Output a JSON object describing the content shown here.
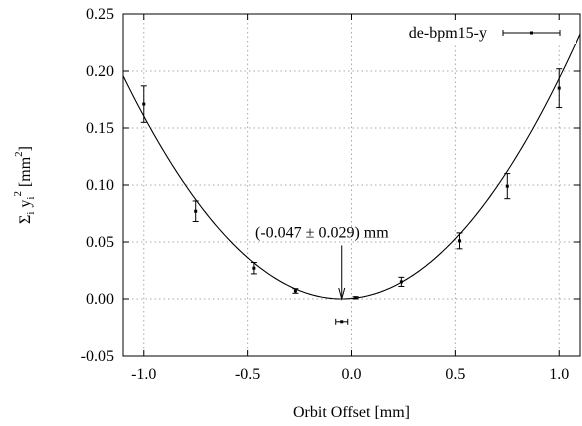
{
  "chart_data": {
    "type": "scatter",
    "xlabel": "Orbit Offset [mm]",
    "ylabel_parts": [
      "Σ",
      "i",
      " y",
      "i",
      "2",
      " [mm",
      "2",
      "]"
    ],
    "xlim": [
      -1.1,
      1.1
    ],
    "ylim": [
      -0.05,
      0.25
    ],
    "grid": true,
    "legend_position": "top-right",
    "x_ticks": [
      -1.0,
      -0.5,
      0.0,
      0.5,
      1.0
    ],
    "x_tick_labels": [
      "-1.0",
      "-0.5",
      "0.0",
      "0.5",
      "1.0"
    ],
    "y_ticks": [
      -0.05,
      0.0,
      0.05,
      0.1,
      0.15,
      0.2,
      0.25
    ],
    "y_tick_labels": [
      "-0.05",
      "0.00",
      "0.05",
      "0.10",
      "0.15",
      "0.20",
      "0.25"
    ],
    "series": [
      {
        "name": "de-bpm15-y",
        "points": [
          {
            "x": -1.0,
            "y": 0.171,
            "yerr": 0.016
          },
          {
            "x": -0.75,
            "y": 0.077,
            "yerr": 0.009
          },
          {
            "x": -0.47,
            "y": 0.027,
            "yerr": 0.005
          },
          {
            "x": -0.27,
            "y": 0.007,
            "yerr": 0.002
          },
          {
            "x": 0.02,
            "y": 0.001,
            "yerr": 0.001
          },
          {
            "x": 0.24,
            "y": 0.015,
            "yerr": 0.004
          },
          {
            "x": 0.52,
            "y": 0.051,
            "yerr": 0.007
          },
          {
            "x": 0.75,
            "y": 0.099,
            "yerr": 0.011
          },
          {
            "x": 1.0,
            "y": 0.185,
            "yerr": 0.017
          }
        ]
      }
    ],
    "fit": {
      "type": "parabola",
      "x0": -0.047,
      "a": 0.1766
    },
    "minimum": {
      "x": -0.047,
      "xerr": 0.029,
      "marker_y": -0.02
    },
    "annotation": {
      "text": "(-0.047 ± 0.029) mm",
      "arrow_from": [
        -0.047,
        0.047
      ],
      "arrow_to": [
        -0.047,
        0.0
      ]
    }
  }
}
